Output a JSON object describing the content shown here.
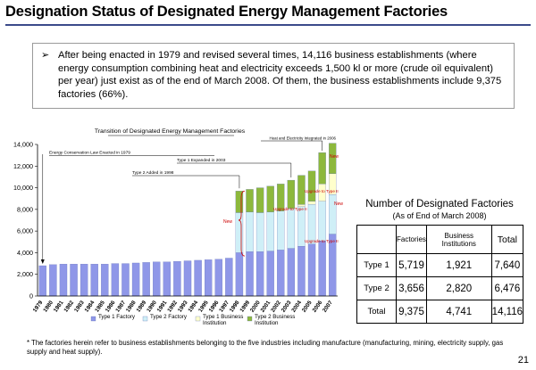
{
  "page": {
    "title": "Designation Status of Designated Energy Management Factories",
    "intro": "After being enacted in 1979 and revised several times, 14,116 business establishments (where energy consumption combining heat and electricity exceeds 1,500 kl or more (crude oil equivalent) per year) just exist as of the end of March 2008. Of them, the business establishments include 9,375  factories (66%).",
    "intro_bullet": "➢",
    "footnote": "* The factories herein refer  to business establishments belonging to the five industries including  manufacture (manufacturing, mining, electricity supply, gas supply  and heat  supply).",
    "page_number": "21"
  },
  "chart_data": {
    "type": "bar",
    "stacked": true,
    "title": "Transition of Designated Energy Management Factories",
    "categories": [
      "1979",
      "1980",
      "1981",
      "1982",
      "1983",
      "1984",
      "1985",
      "1986",
      "1987",
      "1988",
      "1989",
      "1990",
      "1991",
      "1992",
      "1993",
      "1994",
      "1995",
      "1996",
      "1997",
      "1998",
      "1999",
      "2000",
      "2001",
      "2002",
      "2003",
      "2004",
      "2005",
      "2006",
      "2007"
    ],
    "ylim": [
      0,
      14000
    ],
    "yticks": [
      "0",
      "2,000",
      "4,000",
      "6,000",
      "8,000",
      "10,000",
      "12,000",
      "14,000"
    ],
    "grid": false,
    "legend_position": "bottom",
    "series": [
      {
        "name": "Type 1 Factory",
        "color": "#8f97e8",
        "values": [
          2800,
          2900,
          2950,
          2950,
          2950,
          2950,
          2950,
          3000,
          3000,
          3050,
          3100,
          3150,
          3150,
          3200,
          3250,
          3300,
          3350,
          3400,
          3500,
          4000,
          4100,
          4100,
          4150,
          4250,
          4400,
          4600,
          4800,
          5100,
          5719
        ]
      },
      {
        "name": "Type 2 Factory",
        "color": "#cfeff7",
        "values": [
          0,
          0,
          0,
          0,
          0,
          0,
          0,
          0,
          0,
          0,
          0,
          0,
          0,
          0,
          0,
          0,
          0,
          0,
          0,
          3700,
          3650,
          3600,
          3600,
          3600,
          3600,
          3650,
          3650,
          3650,
          3656
        ]
      },
      {
        "name": "Type 1 Business Institution",
        "color": "#ffffcc",
        "values": [
          0,
          0,
          0,
          0,
          0,
          0,
          0,
          0,
          0,
          0,
          0,
          0,
          0,
          0,
          0,
          0,
          0,
          0,
          0,
          0,
          0,
          0,
          0,
          0,
          100,
          200,
          300,
          1600,
          1921
        ]
      },
      {
        "name": "Type 2 Business Institution",
        "color": "#8db83c",
        "values": [
          0,
          0,
          0,
          0,
          0,
          0,
          0,
          0,
          0,
          0,
          0,
          0,
          0,
          0,
          0,
          0,
          0,
          0,
          0,
          2000,
          2100,
          2300,
          2400,
          2500,
          2600,
          2700,
          2800,
          2900,
          2820
        ]
      }
    ],
    "annotations": [
      {
        "text": "Energy Conservation Law Enacted in 1979",
        "category": "1979"
      },
      {
        "text": "Type 2 Added in 1998",
        "category": "1998"
      },
      {
        "text": "Type 1 Expanded in 2003",
        "category": "2003"
      },
      {
        "text": "Heat and Electricity Integrated in 2006",
        "category": "2006"
      },
      {
        "text": "New",
        "color": "#cc0000"
      },
      {
        "text": "New",
        "color": "#cc0000"
      },
      {
        "text": "New",
        "color": "#cc0000"
      },
      {
        "text": "Upgrade to Type II",
        "color": "#cc0000"
      },
      {
        "text": "Upgrade to Type II",
        "color": "#cc0000"
      },
      {
        "text": "Upgrade to Type II",
        "color": "#cc0000"
      }
    ]
  },
  "table": {
    "title": "Number of Designated Factories",
    "subtitle": "(As of End of March 2008)",
    "headers": [
      "",
      "Factories",
      "Business Institutions",
      "Total"
    ],
    "rows": [
      {
        "label": "Type 1",
        "factories": "5,719",
        "institutions": "1,921",
        "total": "7,640"
      },
      {
        "label": "Type 2",
        "factories": "3,656",
        "institutions": "2,820",
        "total": "6,476"
      },
      {
        "label": "Total",
        "factories": "9,375",
        "institutions": "4,741",
        "total": "14,116"
      }
    ]
  }
}
